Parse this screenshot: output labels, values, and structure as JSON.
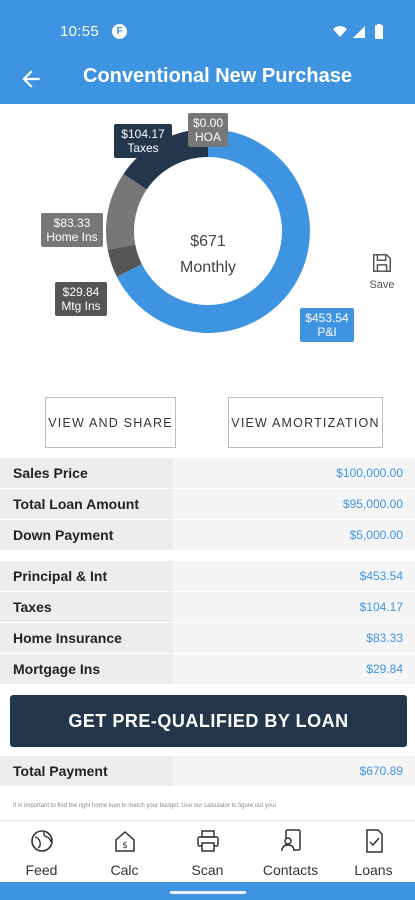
{
  "status_bar": {
    "time": "10:55",
    "notification": "F"
  },
  "app_bar": {
    "title": "Conventional New Purchase"
  },
  "colors": {
    "primary": "#3f94e2",
    "dark": "#24364b",
    "gray": "#777777",
    "dark_gray": "#555555"
  },
  "donut": {
    "center_amount": "$671",
    "center_label": "Monthly",
    "segments": [
      {
        "key": "pi",
        "value": 453.54,
        "color": "#3f94e2"
      },
      {
        "key": "mtgins",
        "value": 29.84,
        "color": "#555555"
      },
      {
        "key": "homeins",
        "value": 83.33,
        "color": "#777777"
      },
      {
        "key": "taxes",
        "value": 104.17,
        "color": "#24364b"
      },
      {
        "key": "hoa",
        "value": 0.0,
        "color": "#777777"
      }
    ],
    "tags": {
      "taxes": {
        "amount": "$104.17",
        "name": "Taxes"
      },
      "hoa": {
        "amount": "$0.00",
        "name": "HOA"
      },
      "homeins": {
        "amount": "$83.33",
        "name": "Home Ins"
      },
      "mtgins": {
        "amount": "$29.84",
        "name": "Mtg Ins"
      },
      "pi": {
        "amount": "$453.54",
        "name": "P&I"
      }
    }
  },
  "save": {
    "label": "Save"
  },
  "actions": {
    "view_share": "VIEW AND SHARE",
    "view_amortization": "VIEW AMORTIZATION"
  },
  "loan_summary": [
    {
      "label": "Sales Price",
      "value": "$100,000.00"
    },
    {
      "label": "Total Loan Amount",
      "value": "$95,000.00"
    },
    {
      "label": "Down Payment",
      "value": "$5,000.00"
    }
  ],
  "payment_breakdown": [
    {
      "label": "Principal & Int",
      "value": "$453.54"
    },
    {
      "label": "Taxes",
      "value": "$104.17"
    },
    {
      "label": "Home Insurance",
      "value": "$83.33"
    },
    {
      "label": "Mortgage Ins",
      "value": "$29.84"
    }
  ],
  "prequal_button": "GET PRE-QUALIFIED BY LOAN",
  "total": {
    "label": "Total Payment",
    "value": "$670.89"
  },
  "disclaimer": "It is important to find the right home loan to match your budget. Use our calculator to figure out your",
  "tabs": [
    {
      "label": "Feed",
      "icon": "globe-icon"
    },
    {
      "label": "Calc",
      "icon": "calculator-house-icon"
    },
    {
      "label": "Scan",
      "icon": "printer-icon"
    },
    {
      "label": "Contacts",
      "icon": "contacts-icon"
    },
    {
      "label": "Loans",
      "icon": "document-check-icon"
    }
  ]
}
